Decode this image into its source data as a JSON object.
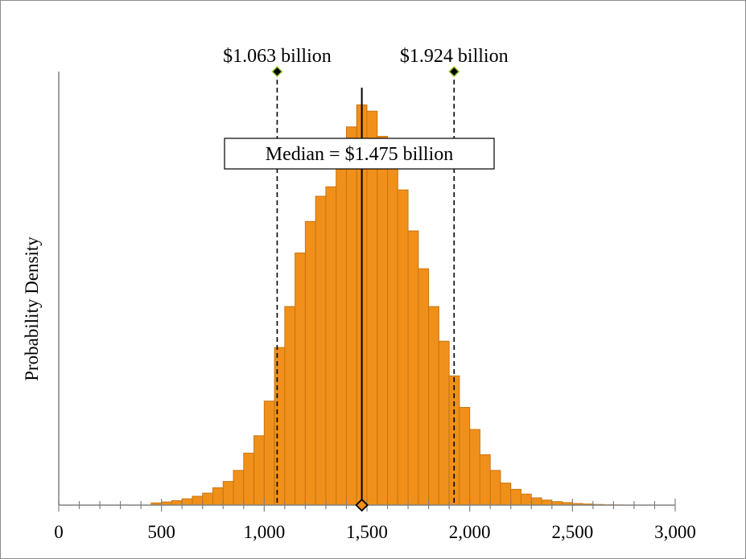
{
  "chart_data": {
    "type": "bar",
    "title": "",
    "xlabel": "",
    "ylabel": "Probability Density",
    "xlim": [
      0,
      3000
    ],
    "x_ticks": [
      0,
      500,
      1000,
      1500,
      2000,
      2500,
      3000
    ],
    "x_tick_labels": [
      "0",
      "500",
      "1,000",
      "1,500",
      "2,000",
      "2,500",
      "3,000"
    ],
    "x_minor_step": 100,
    "y_ticks_shown": false,
    "grid": false,
    "legend": "none",
    "bin_width": 50,
    "bins_x": [
      450,
      500,
      550,
      600,
      650,
      700,
      750,
      800,
      850,
      900,
      950,
      1000,
      1050,
      1100,
      1150,
      1200,
      1250,
      1300,
      1350,
      1400,
      1450,
      1500,
      1550,
      1600,
      1650,
      1700,
      1750,
      1800,
      1850,
      1900,
      1950,
      2000,
      2050,
      2100,
      2150,
      2200,
      2250,
      2300,
      2350,
      2400,
      2450,
      2500,
      2550,
      2600,
      2650,
      2700
    ],
    "density": [
      0.7,
      1.0,
      1.4,
      2.0,
      2.8,
      3.8,
      5.5,
      7.5,
      11.0,
      16.5,
      22.0,
      33.0,
      50.0,
      63.0,
      80.0,
      90.0,
      98.0,
      101.0,
      109.0,
      120.0,
      127.0,
      125.0,
      117.0,
      109.0,
      100.0,
      87.0,
      75.0,
      63.0,
      52.0,
      41.0,
      31.0,
      24.0,
      16.0,
      11.0,
      7.0,
      5.0,
      3.5,
      2.3,
      1.6,
      1.1,
      0.8,
      0.5,
      0.35,
      0.2,
      0.1,
      0.05
    ],
    "ylim": [
      0,
      135
    ],
    "bar_color": "#f0901a",
    "bar_edge_color": "#c97410",
    "markers": [
      {
        "label": "$1.063 billion",
        "x": 1063,
        "style": "dashed",
        "marker_color": "#9acd32"
      },
      {
        "label": "$1.924 billion",
        "x": 1924,
        "style": "dashed",
        "marker_color": "#9acd32"
      }
    ],
    "median": {
      "label": "Median = $1.475 billion",
      "x": 1475
    }
  }
}
